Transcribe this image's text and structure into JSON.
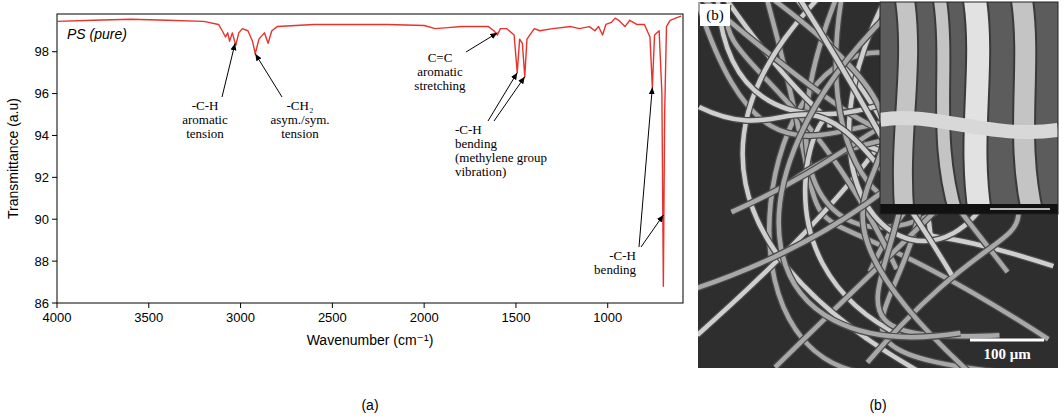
{
  "chart_data": {
    "type": "line",
    "xlabel": "Wavenumber (cm⁻¹)",
    "ylabel": "Transmittance (a.u)",
    "xlim": [
      4000,
      590
    ],
    "ylim": [
      86,
      99.8
    ],
    "xticks": [
      4000,
      3500,
      3000,
      2500,
      2000,
      1500,
      1000
    ],
    "yticks": [
      86,
      88,
      90,
      92,
      94,
      96,
      98
    ],
    "grid": false,
    "legend": "upper left",
    "x": [
      4000,
      3800,
      3600,
      3400,
      3200,
      3120,
      3100,
      3082,
      3070,
      3060,
      3045,
      3026,
      3010,
      2990,
      2960,
      2935,
      2920,
      2900,
      2870,
      2850,
      2830,
      2800,
      2600,
      2400,
      2200,
      2000,
      1940,
      1870,
      1800,
      1740,
      1650,
      1620,
      1601,
      1585,
      1550,
      1510,
      1493,
      1480,
      1465,
      1452,
      1440,
      1400,
      1370,
      1300,
      1200,
      1155,
      1100,
      1070,
      1050,
      1028,
      1010,
      980,
      960,
      940,
      906,
      880,
      842,
      800,
      770,
      757,
      745,
      720,
      705,
      697,
      690,
      680,
      660,
      630,
      600
    ],
    "series": [
      {
        "name": "PS (pure)",
        "color": "#e8322c",
        "line_style": "solid",
        "values": [
          99.45,
          99.5,
          99.55,
          99.5,
          99.45,
          99.3,
          99.0,
          98.7,
          98.9,
          98.5,
          98.9,
          98.3,
          98.9,
          99.1,
          99.0,
          98.5,
          97.9,
          98.6,
          98.9,
          98.4,
          99.0,
          99.2,
          99.3,
          99.3,
          99.3,
          99.25,
          99.1,
          99.15,
          99.2,
          99.2,
          99.2,
          99.0,
          98.8,
          99.1,
          99.1,
          98.8,
          97.0,
          98.6,
          98.4,
          96.8,
          98.6,
          99.1,
          99.0,
          99.1,
          99.2,
          99.1,
          99.2,
          99.0,
          99.2,
          98.8,
          99.3,
          99.4,
          99.6,
          99.5,
          99.2,
          99.5,
          99.3,
          99.3,
          98.7,
          96.3,
          98.8,
          99.0,
          96.0,
          86.8,
          95.0,
          99.2,
          99.5,
          99.6,
          99.7
        ]
      }
    ],
    "annotations": [
      {
        "lines": [
          "-C-H",
          "aromatic",
          "tension"
        ],
        "points": [
          [
            3030,
            98.4
          ]
        ]
      },
      {
        "lines": [
          "-CH₂",
          "asym./sym.",
          "tension"
        ],
        "points": [
          [
            2920,
            97.9
          ]
        ]
      },
      {
        "lines": [
          "C=C",
          "aromatic",
          "stretching"
        ],
        "points": [
          [
            1601,
            98.9
          ]
        ]
      },
      {
        "lines": [
          "-C-H",
          "bending",
          "(methylene group",
          "vibration)"
        ],
        "points": [
          [
            1493,
            97.0
          ],
          [
            1452,
            96.8
          ]
        ]
      },
      {
        "lines": [
          "-C-H",
          "bending"
        ],
        "points": [
          [
            757,
            96.3
          ],
          [
            697,
            90.2
          ]
        ]
      }
    ]
  },
  "image": {
    "label": "(b)",
    "scale_bar": "100 μm"
  },
  "captions": [
    "(a)",
    "(b)"
  ]
}
